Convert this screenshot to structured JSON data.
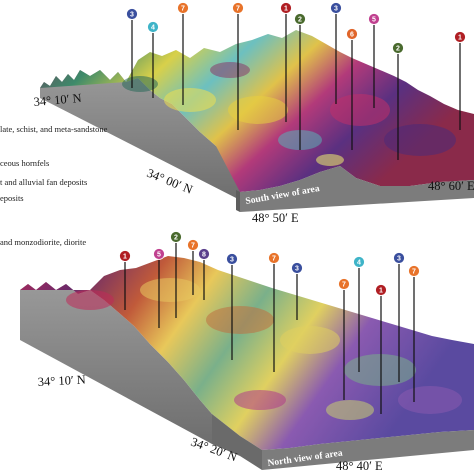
{
  "legend": [
    "late, schist, and meta-sandstone",
    "ceous hornfels",
    "t and alluvial fan deposits",
    "eposits",
    "and monzodiorite, diorite"
  ],
  "top_panel": {
    "view_label": "South view of area",
    "coords": [
      "34° 10′ N",
      "34° 00′ N",
      "48° 50′ E",
      "48° 60′ E"
    ]
  },
  "bottom_panel": {
    "view_label": "North view of area",
    "coords": [
      "34° 10′ N",
      "34° 20′ N",
      "48° 40′ E"
    ]
  },
  "unit_colors": {
    "1": "#b01f24",
    "2": "#4a6a2e",
    "3": "#3a4f9e",
    "4": "#3fb4c8",
    "5": "#c0408f",
    "6": "#e0652a",
    "7": "#e8732a",
    "8": "#5a3f8c"
  },
  "top_markers": [
    "3",
    "4",
    "7",
    "7",
    "1",
    "2",
    "3",
    "6",
    "5",
    "2",
    "1"
  ],
  "bottom_markers": [
    "1",
    "5",
    "2",
    "7",
    "8",
    "3",
    "7",
    "3",
    "4",
    "7",
    "1",
    "3",
    "7"
  ]
}
